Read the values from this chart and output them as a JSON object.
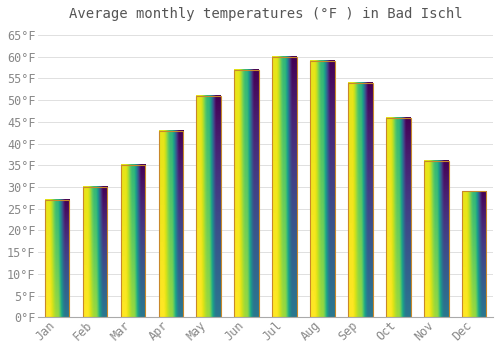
{
  "title": "Average monthly temperatures (°F ) in Bad Ischl",
  "months": [
    "Jan",
    "Feb",
    "Mar",
    "Apr",
    "May",
    "Jun",
    "Jul",
    "Aug",
    "Sep",
    "Oct",
    "Nov",
    "Dec"
  ],
  "values": [
    27,
    30,
    35,
    43,
    51,
    57,
    60,
    59,
    54,
    46,
    36,
    29
  ],
  "bar_color_bottom": "#F5A800",
  "bar_color_top": "#FFD966",
  "bar_edge_color": "#C8882A",
  "background_color": "#FFFFFF",
  "grid_color": "#E0E0E0",
  "text_color": "#888888",
  "title_color": "#555555",
  "ylim": [
    0,
    67
  ],
  "yticks": [
    0,
    5,
    10,
    15,
    20,
    25,
    30,
    35,
    40,
    45,
    50,
    55,
    60,
    65
  ],
  "title_fontsize": 10,
  "tick_fontsize": 8.5,
  "bar_width": 0.65
}
